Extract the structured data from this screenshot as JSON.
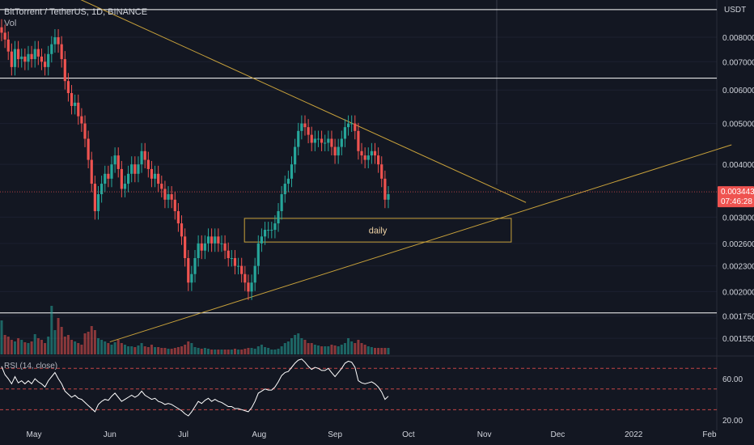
{
  "header": {
    "symbol_line": "BitTorrent / TetherUS, 1D, BINANCE",
    "volume_label": "Vol",
    "rsi_label": "RSI (14, close)",
    "currency": "USDT"
  },
  "annotation": {
    "daily_label": "daily"
  },
  "last_price": {
    "value": "0.003443",
    "countdown": "07:46:28"
  },
  "colors": {
    "background": "#131722",
    "up": "#26a69a",
    "down": "#ef5350",
    "trendline": "#c9a23b",
    "horizontal_line": "#ffffff",
    "rsi_line": "#ffffff",
    "rsi_band": "#ef5350",
    "last_price": "#ef5350"
  },
  "chart_data": {
    "type": "candlestick",
    "title": "BitTorrent / TetherUS, 1D, BINANCE",
    "x_ticks": [
      "May",
      "Jun",
      "Jul",
      "Aug",
      "Sep",
      "Oct",
      "Nov",
      "Dec",
      "2022",
      "Feb"
    ],
    "price_ticks": [
      {
        "label": "0.008000",
        "value": 0.008
      },
      {
        "label": "0.007000",
        "value": 0.007
      },
      {
        "label": "0.006000",
        "value": 0.006
      },
      {
        "label": "0.005000",
        "value": 0.005
      },
      {
        "label": "0.004000",
        "value": 0.004
      },
      {
        "label": "0.003000",
        "value": 0.003
      },
      {
        "label": "0.002600",
        "value": 0.0026
      },
      {
        "label": "0.002300",
        "value": 0.0023
      },
      {
        "label": "0.002000",
        "value": 0.002
      },
      {
        "label": "0.001750",
        "value": 0.00175
      },
      {
        "label": "0.001550",
        "value": 0.00155
      }
    ],
    "scale": "log",
    "price_range": [
      0.00142,
      0.0098
    ],
    "rsi_ticks": [
      {
        "label": "60.00",
        "value": 60
      },
      {
        "label": "20.00",
        "value": 20
      }
    ],
    "rsi_levels": [
      70,
      50,
      30
    ],
    "horizontal_levels": [
      0.0093,
      0.0064,
      0.00178
    ],
    "trendlines": [
      {
        "from": [
          "2021-04-27",
          0.0113
        ],
        "to": [
          "2021-11-18",
          0.00325
        ]
      },
      {
        "from": [
          "2021-06-01",
          0.00152
        ],
        "to": [
          "2022-02-10",
          0.00445
        ]
      }
    ],
    "support_zone": {
      "from": "2021-07-26",
      "to": "2021-11-12",
      "high": 0.00298,
      "low": 0.00262
    },
    "closes": [
      0.0082,
      0.0079,
      0.0074,
      0.0068,
      0.0075,
      0.0071,
      0.0072,
      0.007,
      0.0073,
      0.0071,
      0.0075,
      0.0072,
      0.007,
      0.0068,
      0.0073,
      0.0077,
      0.008,
      0.0077,
      0.0071,
      0.0063,
      0.0059,
      0.0055,
      0.0056,
      0.0052,
      0.005,
      0.0046,
      0.0041,
      0.0036,
      0.0031,
      0.0034,
      0.0036,
      0.0038,
      0.0037,
      0.004,
      0.0042,
      0.0039,
      0.0035,
      0.0036,
      0.0038,
      0.004,
      0.0038,
      0.004,
      0.0043,
      0.0041,
      0.0039,
      0.0037,
      0.0038,
      0.0036,
      0.0035,
      0.0033,
      0.0034,
      0.0033,
      0.0031,
      0.0029,
      0.0027,
      0.0024,
      0.0021,
      0.0022,
      0.0024,
      0.0026,
      0.0025,
      0.0026,
      0.0027,
      0.0026,
      0.0027,
      0.0026,
      0.0026,
      0.0025,
      0.0024,
      0.0024,
      0.0023,
      0.0023,
      0.0022,
      0.0021,
      0.002,
      0.0021,
      0.0023,
      0.0026,
      0.0027,
      0.0028,
      0.0028,
      0.0028,
      0.0029,
      0.0031,
      0.0034,
      0.0036,
      0.0037,
      0.004,
      0.0044,
      0.0048,
      0.005,
      0.0049,
      0.0047,
      0.0045,
      0.0046,
      0.0046,
      0.0045,
      0.0045,
      0.0046,
      0.0044,
      0.0042,
      0.0044,
      0.0046,
      0.0049,
      0.005,
      0.005,
      0.0048,
      0.0043,
      0.0042,
      0.0041,
      0.0042,
      0.0043,
      0.0042,
      0.004,
      0.0037,
      0.0033,
      0.0034
    ],
    "volumes": [
      42,
      24,
      22,
      18,
      16,
      20,
      18,
      15,
      14,
      16,
      25,
      20,
      18,
      14,
      22,
      60,
      30,
      45,
      34,
      22,
      24,
      18,
      16,
      14,
      12,
      26,
      28,
      35,
      30,
      20,
      18,
      16,
      14,
      12,
      15,
      18,
      14,
      12,
      10,
      10,
      9,
      11,
      14,
      10,
      9,
      12,
      9,
      9,
      8,
      8,
      7,
      7,
      8,
      9,
      10,
      12,
      16,
      14,
      9,
      8,
      7,
      8,
      7,
      6,
      6,
      6,
      6,
      6,
      6,
      6,
      7,
      6,
      6,
      7,
      8,
      8,
      7,
      10,
      12,
      9,
      8,
      6,
      6,
      7,
      10,
      14,
      16,
      20,
      24,
      26,
      20,
      18,
      14,
      14,
      12,
      11,
      10,
      10,
      10,
      12,
      11,
      10,
      12,
      14,
      20,
      16,
      14,
      18,
      14,
      12,
      10,
      9,
      8,
      8,
      8,
      8,
      8
    ],
    "rsi": [
      72,
      64,
      60,
      55,
      62,
      56,
      58,
      55,
      58,
      55,
      60,
      57,
      55,
      52,
      58,
      62,
      66,
      60,
      55,
      48,
      45,
      42,
      44,
      41,
      40,
      37,
      34,
      31,
      28,
      35,
      38,
      40,
      39,
      43,
      46,
      42,
      38,
      40,
      42,
      44,
      42,
      44,
      48,
      44,
      42,
      40,
      41,
      38,
      37,
      35,
      36,
      35,
      33,
      31,
      29,
      26,
      24,
      28,
      33,
      38,
      36,
      39,
      41,
      38,
      40,
      38,
      37,
      35,
      33,
      33,
      31,
      31,
      30,
      29,
      28,
      32,
      38,
      46,
      48,
      50,
      49,
      49,
      52,
      57,
      63,
      66,
      67,
      71,
      75,
      78,
      79,
      76,
      72,
      69,
      71,
      70,
      68,
      68,
      70,
      66,
      62,
      66,
      70,
      75,
      77,
      76,
      71,
      58,
      56,
      55,
      56,
      57,
      55,
      52,
      47,
      40,
      43
    ]
  }
}
